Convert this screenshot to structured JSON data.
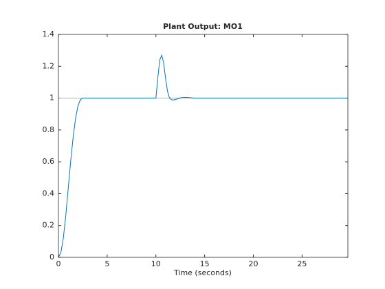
{
  "chart_data": {
    "type": "line",
    "title": "Plant Output:  MO1",
    "x_label": "Time (seconds)",
    "x": [
      0,
      0.25,
      0.5,
      0.75,
      1,
      1.25,
      1.5,
      1.75,
      2,
      2.25,
      2.5,
      2.75,
      3,
      10,
      10.2,
      10.4,
      10.6,
      10.8,
      11,
      11.2,
      11.4,
      11.6,
      11.8,
      12.2,
      12.6,
      13,
      13.5,
      14,
      14.5,
      29.7
    ],
    "series": [
      {
        "color": "#b0b0b0",
        "values": [
          1,
          1,
          1,
          1,
          1,
          1,
          1,
          1,
          1,
          1,
          1,
          1,
          1,
          1,
          1,
          1,
          1,
          1,
          1,
          1,
          1,
          1,
          1,
          1,
          1,
          1,
          1,
          1,
          1,
          1
        ]
      },
      {
        "color": "#0072bd",
        "values": [
          0,
          0.03,
          0.12,
          0.26,
          0.43,
          0.6,
          0.75,
          0.87,
          0.95,
          0.99,
          1,
          1,
          1,
          1,
          1.13,
          1.24,
          1.27,
          1.22,
          1.12,
          1.04,
          1.0,
          0.99,
          0.988,
          0.995,
          1.003,
          1.005,
          1.003,
          1,
          1,
          1
        ]
      }
    ],
    "xlim": [
      0,
      29.7
    ],
    "ylim": [
      0,
      1.4
    ],
    "xticks": [
      0,
      5,
      10,
      15,
      20,
      25
    ],
    "yticks": [
      0,
      0.2,
      0.4,
      0.6,
      0.8,
      1,
      1.2,
      1.4
    ]
  }
}
